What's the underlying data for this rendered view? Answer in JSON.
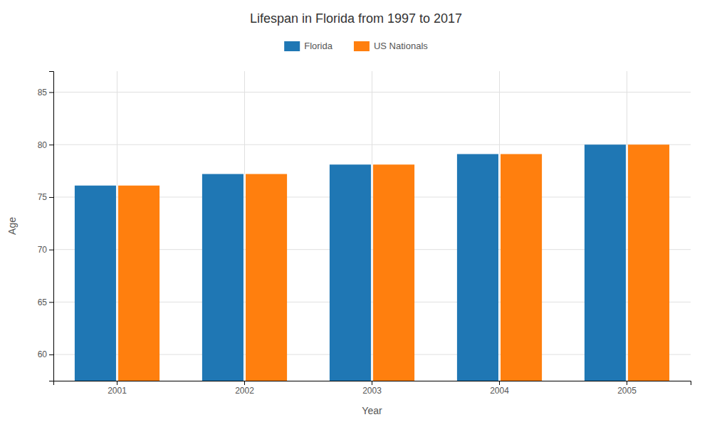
{
  "chart_data": {
    "type": "bar",
    "title": "Lifespan in Florida from 1997 to 2017",
    "x_label": "Year",
    "y_label": "Age",
    "categories": [
      "2001",
      "2002",
      "2003",
      "2004",
      "2005"
    ],
    "series": [
      {
        "name": "Florida",
        "values": [
          76.1,
          77.2,
          78.1,
          79.1,
          80.0
        ]
      },
      {
        "name": "US Nationals",
        "values": [
          76.1,
          77.2,
          78.1,
          79.1,
          80.0
        ]
      }
    ],
    "ylim": [
      57.5,
      87
    ],
    "yticks": [
      60,
      65,
      70,
      75,
      80,
      85
    ],
    "grid": true,
    "legend": "top"
  }
}
